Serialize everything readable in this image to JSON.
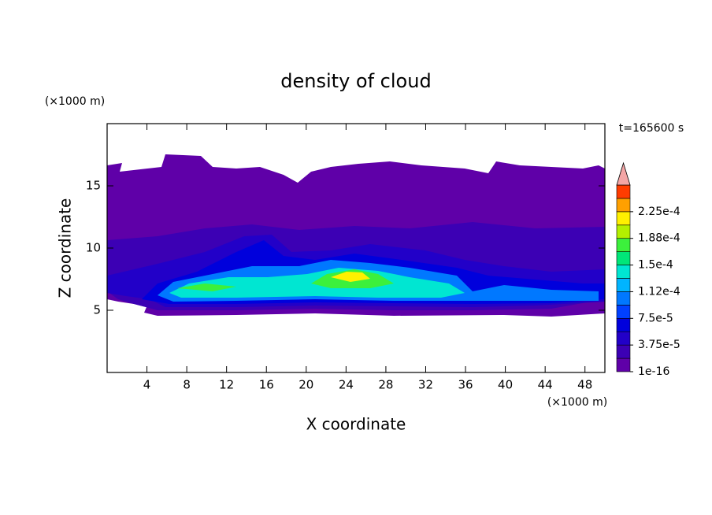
{
  "chart_data": {
    "type": "contour",
    "title": "density of cloud",
    "annotation": "t=165600 s",
    "x_label": "X coordinate",
    "y_label": "Z coordinate",
    "x_unit": "(×1000 m)",
    "y_unit": "(×1000 m)",
    "xlim": [
      0,
      50
    ],
    "xticks": [
      4,
      8,
      12,
      16,
      20,
      24,
      28,
      32,
      36,
      40,
      44,
      48
    ],
    "ylim": [
      0,
      20
    ],
    "yticks": [
      5,
      10,
      15
    ],
    "colorbar": {
      "lim": [
        1e-16,
        0.0002625
      ],
      "ticks": [
        {
          "value": 1e-16,
          "label": "1e-16"
        },
        {
          "value": 3.75e-05,
          "label": "3.75e-5"
        },
        {
          "value": 7.5e-05,
          "label": "7.5e-5"
        },
        {
          "value": 0.0001125,
          "label": "1.12e-4"
        },
        {
          "value": 0.00015,
          "label": "1.5e-4"
        },
        {
          "value": 0.0001875,
          "label": "1.88e-4"
        },
        {
          "value": 0.000225,
          "label": "2.25e-4"
        }
      ],
      "colors": [
        "#5f00a8",
        "#3c00b4",
        "#2200c8",
        "#0000dc",
        "#0040ff",
        "#0078ff",
        "#00b4ff",
        "#00e6d2",
        "#00e678",
        "#3cf03c",
        "#b4f000",
        "#fff000",
        "#ffa000",
        "#ff3c00"
      ],
      "extend_color": "#f4a6a6"
    }
  }
}
